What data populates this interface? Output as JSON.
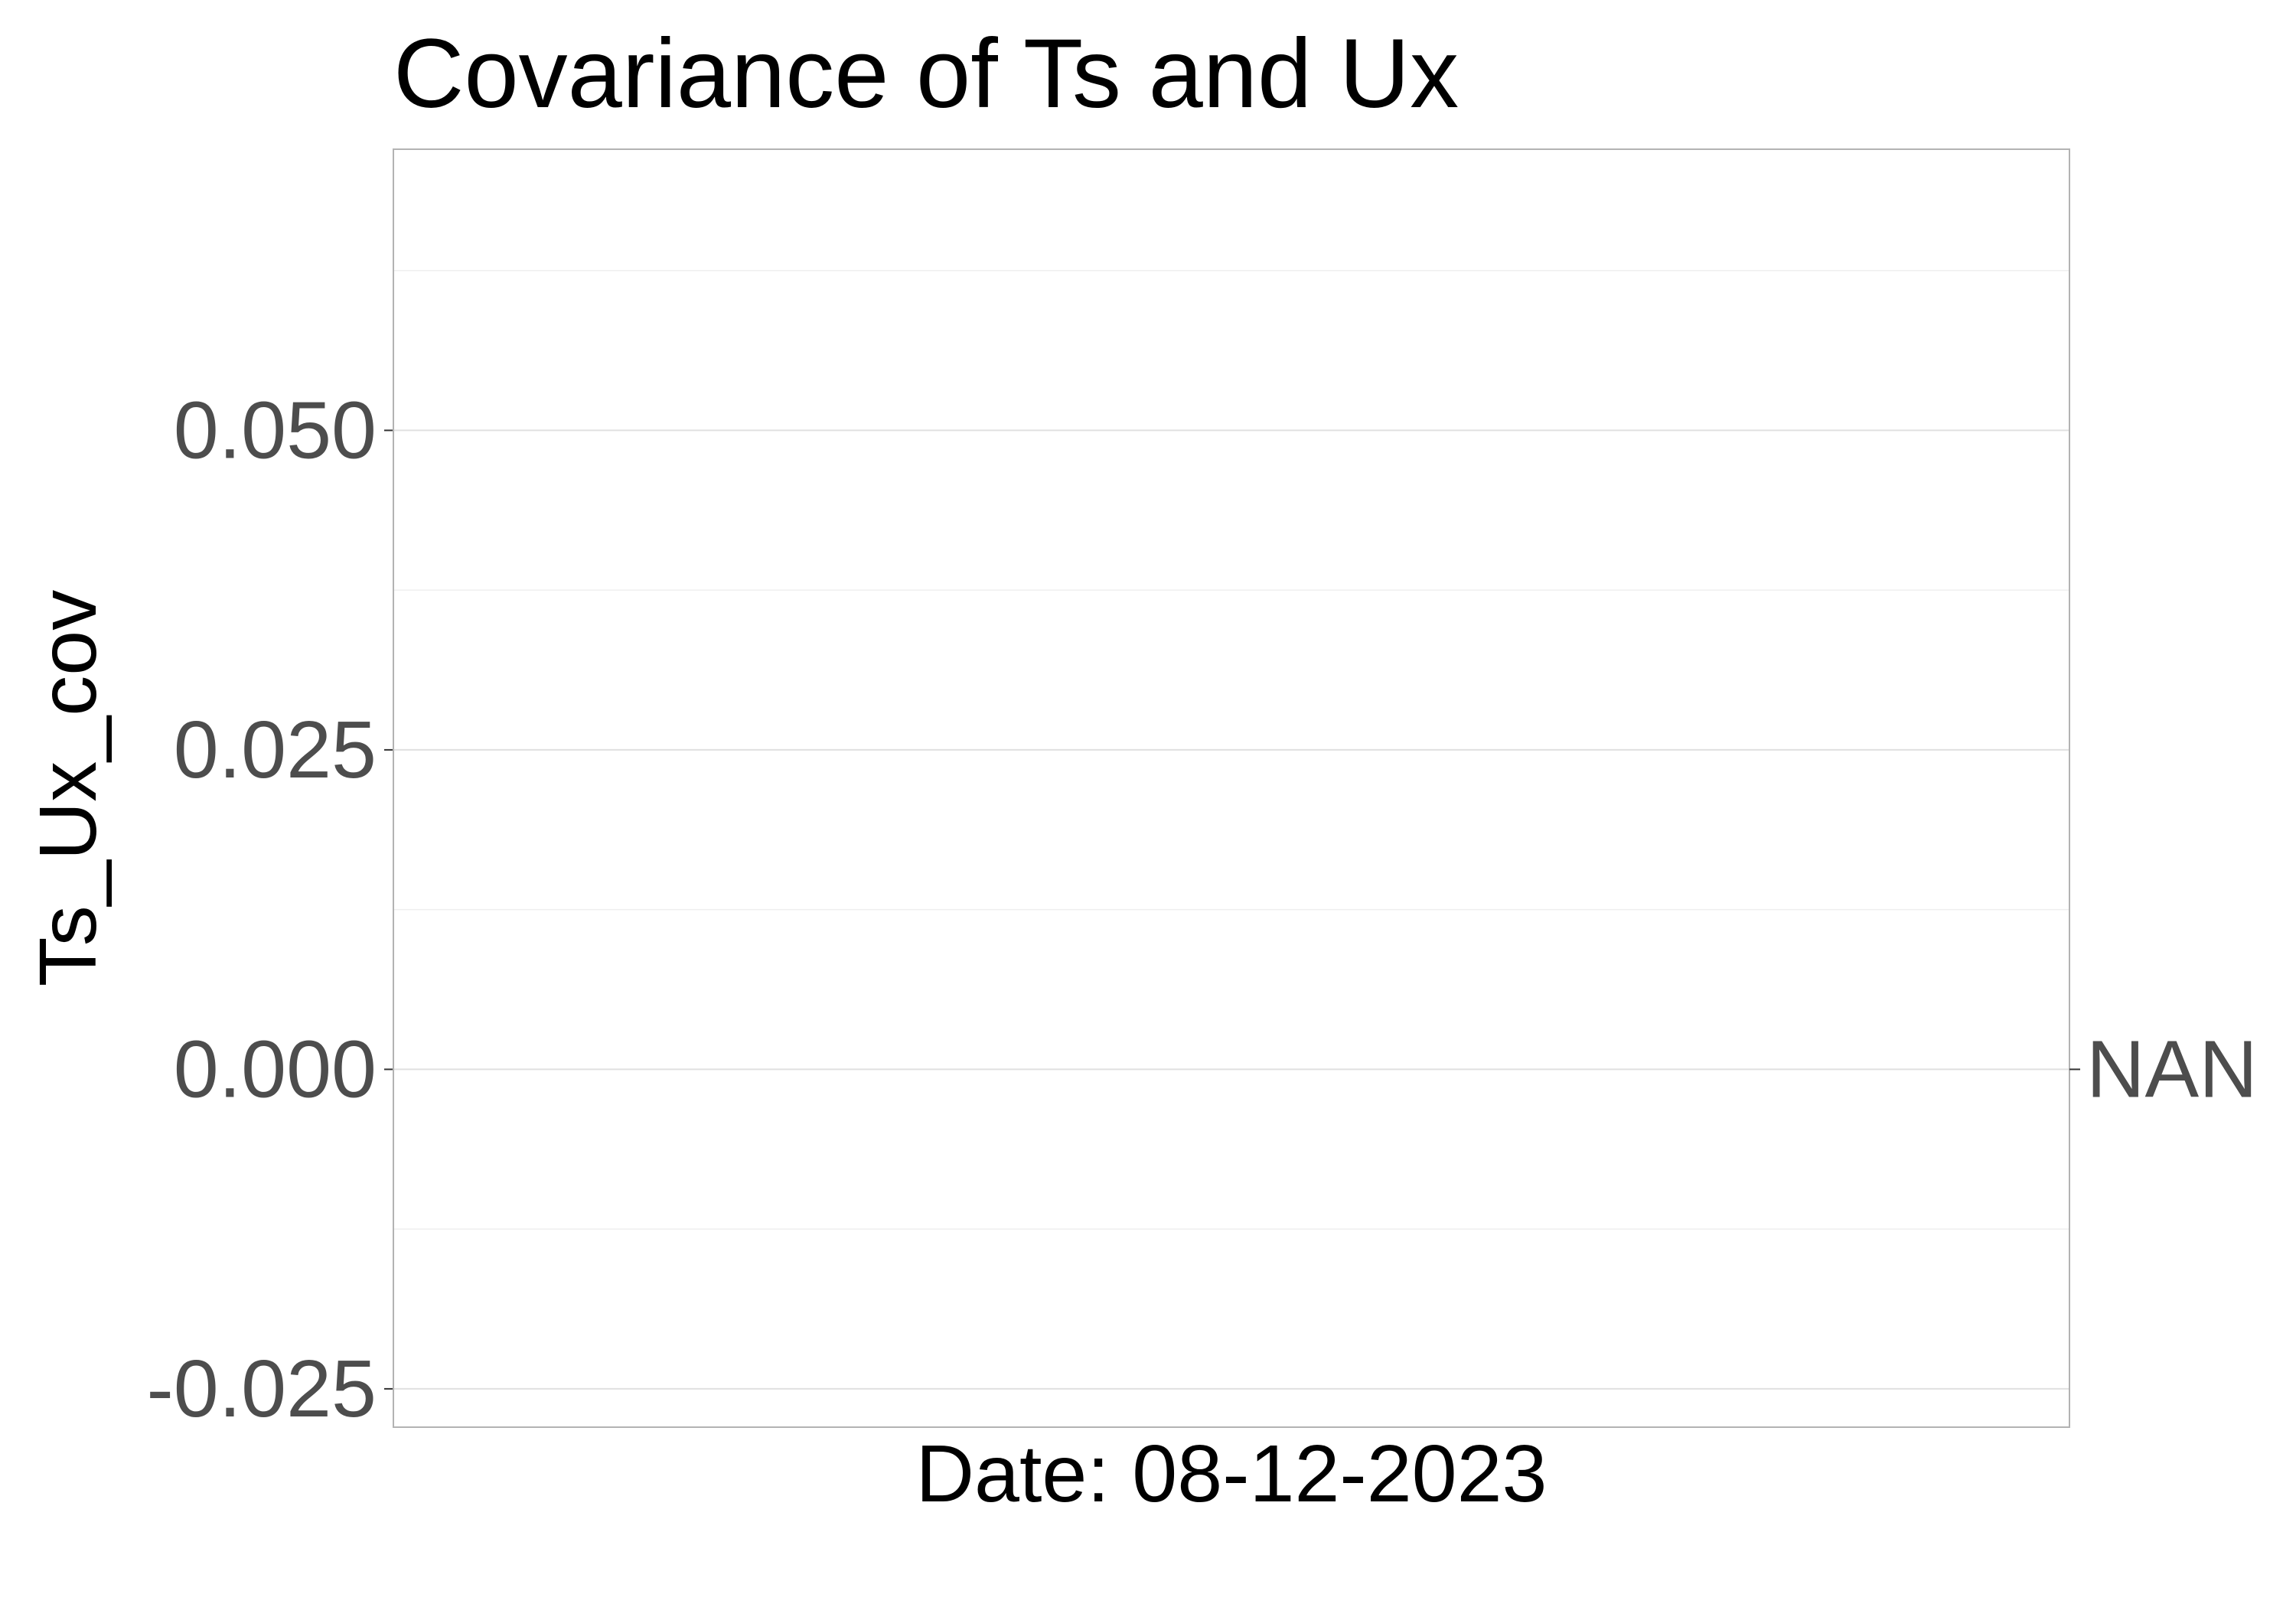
{
  "chart_data": {
    "type": "line",
    "title": "Covariance of Ts and Ux",
    "xlabel": "Date: 08-12-2023",
    "ylabel": "Ts_Ux_cov",
    "ylim": [
      -0.028,
      0.072
    ],
    "y_ticks": [
      -0.025,
      0.0,
      0.025,
      0.05
    ],
    "y_tick_labels": [
      "-0.025",
      "0.000",
      "0.025",
      "0.050"
    ],
    "y_minor_gridlines": [
      -0.0125,
      0.0125,
      0.0375,
      0.0625
    ],
    "x_ticks": [],
    "grid": true,
    "series": [],
    "annotations": [
      {
        "text": "NAN",
        "y": 0.0
      }
    ],
    "colors": {
      "background": "#ffffff",
      "panel_border": "#b3b3b3",
      "major_grid": "#e0e0e0",
      "minor_grid": "#efefef",
      "tick_text": "#4d4d4d",
      "axis_text": "#000000"
    }
  }
}
